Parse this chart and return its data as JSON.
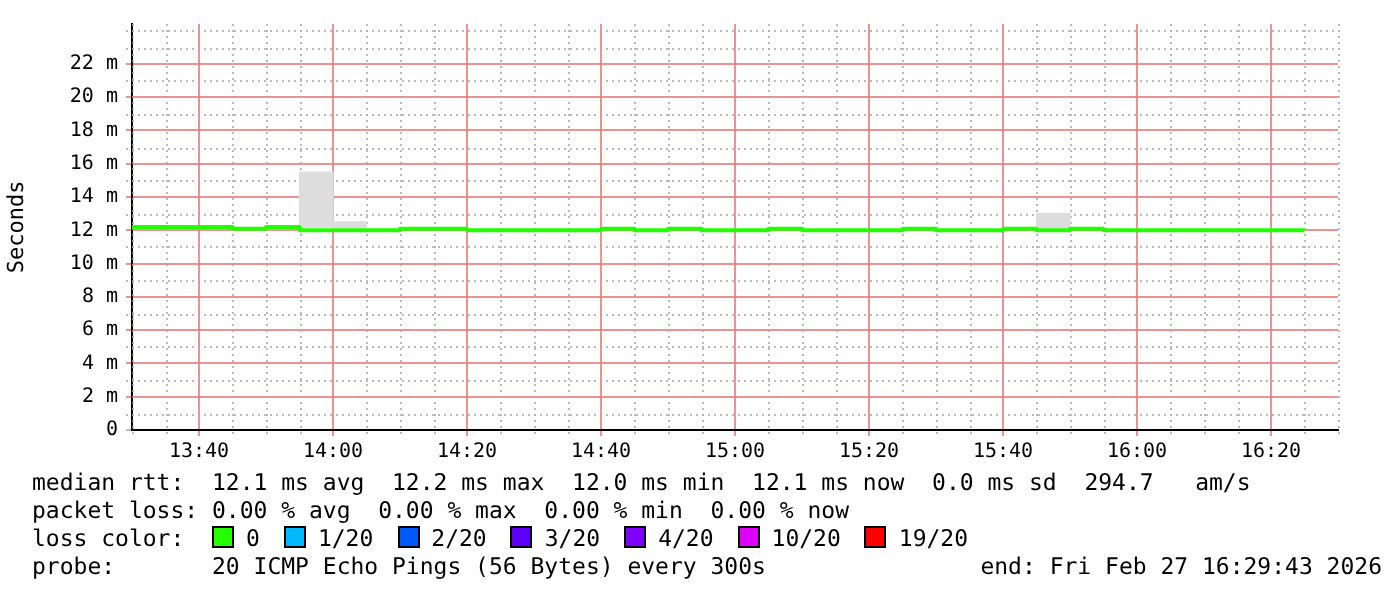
{
  "chart_data": {
    "type": "step",
    "ylabel": "Seconds",
    "xlim": [
      13.5,
      16.5
    ],
    "xticks": [
      {
        "value": 13.6667,
        "label": "13:40"
      },
      {
        "value": 14,
        "label": "14:00"
      },
      {
        "value": 14.3333,
        "label": "14:20"
      },
      {
        "value": 14.6667,
        "label": "14:40"
      },
      {
        "value": 15,
        "label": "15:00"
      },
      {
        "value": 15.3333,
        "label": "15:20"
      },
      {
        "value": 15.6667,
        "label": "15:40"
      },
      {
        "value": 16,
        "label": "16:00"
      },
      {
        "value": 16.3333,
        "label": "16:20"
      }
    ],
    "ylim": [
      0,
      24.4
    ],
    "yticks": [
      0,
      {
        "value": 2,
        "label": "2 m"
      },
      {
        "value": 4,
        "label": "4 m"
      },
      {
        "value": 6,
        "label": "6 m"
      },
      {
        "value": 8,
        "label": "8 m"
      },
      {
        "value": 10,
        "label": "10 m"
      },
      {
        "value": 12,
        "label": "12 m"
      },
      {
        "value": 14,
        "label": "14 m"
      },
      {
        "value": 16,
        "label": "16 m"
      },
      {
        "value": 18,
        "label": "18 m"
      },
      {
        "value": 20,
        "label": "20 m"
      },
      {
        "value": 22,
        "label": "22 m"
      }
    ],
    "grid": true,
    "legend": false,
    "marker": "none",
    "series": [
      {
        "type": "bar",
        "color": "#dddddd",
        "x": [
          13.9583,
          14.0417,
          15.7917
        ],
        "base": [
          12.2,
          12.0,
          12.0
        ],
        "values": [
          3.3,
          0.5,
          1.0
        ]
      },
      {
        "color": "#20ff00",
        "x": [
          13.5,
          13.5833,
          13.6667,
          13.75,
          13.8333,
          13.9167,
          14,
          14.0833,
          14.1667,
          14.25,
          14.3333,
          14.4167,
          14.5,
          14.5833,
          14.6667,
          14.75,
          14.8333,
          14.9167,
          15,
          15.0833,
          15.1667,
          15.25,
          15.3333,
          15.4167,
          15.5,
          15.5833,
          15.6667,
          15.75,
          15.8333,
          15.9167,
          16,
          16.0833,
          16.1667,
          16.25,
          16.3333,
          16.4167
        ],
        "values": [
          12.1,
          12.2,
          12.2,
          12.2,
          12.1,
          12.2,
          12.0,
          12.0,
          12.0,
          12.1,
          12.1,
          12.0,
          12.0,
          12.0,
          12.0,
          12.1,
          12.0,
          12.1,
          12.0,
          12.0,
          12.1,
          12.0,
          12.0,
          12.0,
          12.1,
          12.0,
          12.0,
          12.1,
          12.0,
          12.1,
          12.0,
          12.0,
          12.0,
          12.0,
          12.0,
          12.0
        ]
      }
    ],
    "annotations": [
      "median rtt:  12.1 ms avg  12.2 ms max  12.0 ms min  12.1 ms now  0.0 ms sd  294.7   am/s",
      "packet loss: 0.00 % avg  0.00 % max  0.00 % min  0.00 % now",
      "loss color:",
      "0",
      "1/20",
      "2/20",
      "3/20",
      "4/20",
      "10/20",
      "19/20",
      "probe:       20 ICMP Echo Pings (56 Bytes) every 300s",
      "end: Fri Feb 27 16:29:43 2026"
    ]
  }
}
